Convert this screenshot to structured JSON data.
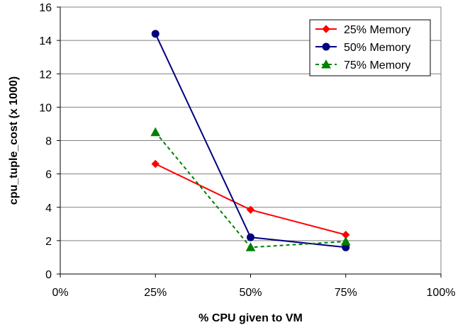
{
  "chart_data": {
    "type": "line",
    "title": "",
    "xlabel": "% CPU given to VM",
    "ylabel": "cpu_tuple_cost (x 1000)",
    "xlim": [
      0,
      100
    ],
    "ylim": [
      0,
      16
    ],
    "x_ticks": [
      0,
      25,
      50,
      75,
      100
    ],
    "x_tick_labels": [
      "0%",
      "25%",
      "50%",
      "75%",
      "100%"
    ],
    "y_ticks": [
      0,
      2,
      4,
      6,
      8,
      10,
      12,
      14,
      16
    ],
    "y_tick_labels": [
      "0",
      "2",
      "4",
      "6",
      "8",
      "10",
      "12",
      "14",
      "16"
    ],
    "grid": "horizontal",
    "legend_position": "top-right",
    "x": [
      25,
      50,
      75
    ],
    "series": [
      {
        "name": "25% Memory",
        "values": [
          6.6,
          3.85,
          2.35
        ],
        "color": "#ff0000",
        "marker": "diamond",
        "dash": "solid"
      },
      {
        "name": "50% Memory",
        "values": [
          14.4,
          2.2,
          1.6
        ],
        "color": "#000080",
        "marker": "circle",
        "dash": "solid"
      },
      {
        "name": "75% Memory",
        "values": [
          8.5,
          1.6,
          1.95
        ],
        "color": "#008000",
        "marker": "triangle",
        "dash": "dashed"
      }
    ]
  }
}
